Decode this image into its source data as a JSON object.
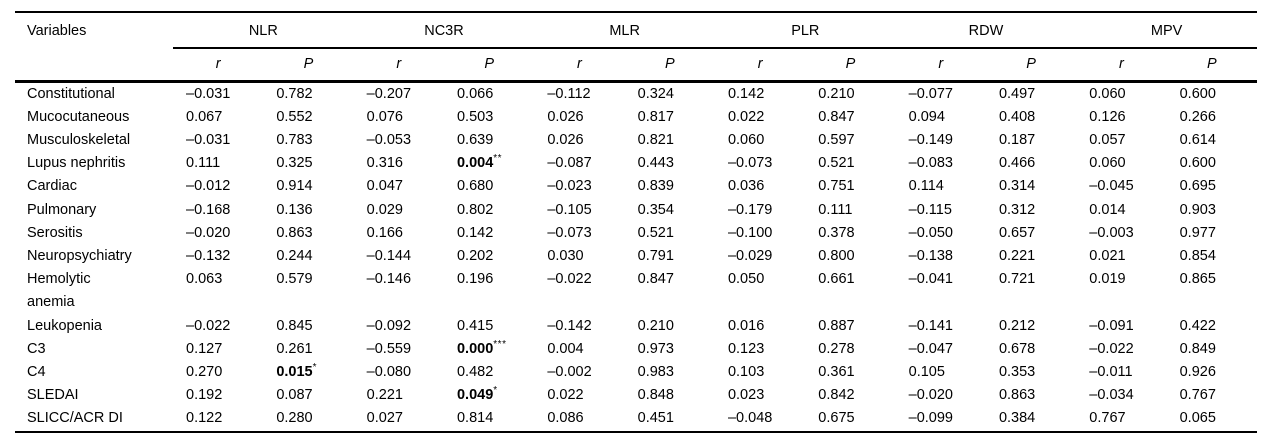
{
  "table": {
    "row_header_label": "Variables",
    "groups": [
      "NLR",
      "NC3R",
      "MLR",
      "PLR",
      "RDW",
      "MPV"
    ],
    "subheaders": [
      "r",
      "P"
    ],
    "rows": [
      {
        "label": "Constitutional",
        "cells": [
          "–0.031",
          "0.782",
          "–0.207",
          "0.066",
          "–0.112",
          "0.324",
          "0.142",
          "0.210",
          "–0.077",
          "0.497",
          "0.060",
          "0.600"
        ]
      },
      {
        "label": "Mucocutaneous",
        "cells": [
          "0.067",
          "0.552",
          "0.076",
          "0.503",
          "0.026",
          "0.817",
          "0.022",
          "0.847",
          "0.094",
          "0.408",
          "0.126",
          "0.266"
        ]
      },
      {
        "label": "Musculoskeletal",
        "cells": [
          "–0.031",
          "0.783",
          "–0.053",
          "0.639",
          "0.026",
          "0.821",
          "0.060",
          "0.597",
          "–0.149",
          "0.187",
          "0.057",
          "0.614"
        ]
      },
      {
        "label": "Lupus nephritis",
        "cells": [
          "0.111",
          "0.325",
          "0.316",
          {
            "v": "0.004",
            "bold": true,
            "sup": "**"
          },
          "–0.087",
          "0.443",
          "–0.073",
          "0.521",
          "–0.083",
          "0.466",
          "0.060",
          "0.600"
        ]
      },
      {
        "label": "Cardiac",
        "cells": [
          "–0.012",
          "0.914",
          "0.047",
          "0.680",
          "–0.023",
          "0.839",
          "0.036",
          "0.751",
          "0.114",
          "0.314",
          "–0.045",
          "0.695"
        ]
      },
      {
        "label": "Pulmonary",
        "cells": [
          "–0.168",
          "0.136",
          "0.029",
          "0.802",
          "–0.105",
          "0.354",
          "–0.179",
          "0.111",
          "–0.115",
          "0.312",
          "0.014",
          "0.903"
        ]
      },
      {
        "label": "Serositis",
        "cells": [
          "–0.020",
          "0.863",
          "0.166",
          "0.142",
          "–0.073",
          "0.521",
          "–0.100",
          "0.378",
          "–0.050",
          "0.657",
          "–0.003",
          "0.977"
        ]
      },
      {
        "label": "Neuropsychiatry",
        "cells": [
          "–0.132",
          "0.244",
          "–0.144",
          "0.202",
          "0.030",
          "0.791",
          "–0.029",
          "0.800",
          "–0.138",
          "0.221",
          "0.021",
          "0.854"
        ]
      },
      {
        "label": "Hemolytic\nanemia",
        "cells": [
          "0.063",
          "0.579",
          "–0.146",
          "0.196",
          "–0.022",
          "0.847",
          "0.050",
          "0.661",
          "–0.041",
          "0.721",
          "0.019",
          "0.865"
        ]
      },
      {
        "label": "Leukopenia",
        "cells": [
          "–0.022",
          "0.845",
          "–0.092",
          "0.415",
          "–0.142",
          "0.210",
          "0.016",
          "0.887",
          "–0.141",
          "0.212",
          "–0.091",
          "0.422"
        ]
      },
      {
        "label": "C3",
        "cells": [
          "0.127",
          "0.261",
          "–0.559",
          {
            "v": "0.000",
            "bold": true,
            "sup": "***"
          },
          "0.004",
          "0.973",
          "0.123",
          "0.278",
          "–0.047",
          "0.678",
          "–0.022",
          "0.849"
        ]
      },
      {
        "label": "C4",
        "cells": [
          "0.270",
          {
            "v": "0.015",
            "bold": true,
            "sup": "*"
          },
          "–0.080",
          "0.482",
          "–0.002",
          "0.983",
          "0.103",
          "0.361",
          "0.105",
          "0.353",
          "–0.011",
          "0.926"
        ]
      },
      {
        "label": "SLEDAI",
        "cells": [
          "0.192",
          "0.087",
          "0.221",
          {
            "v": "0.049",
            "bold": true,
            "sup": "*"
          },
          "0.022",
          "0.848",
          "0.023",
          "0.842",
          "–0.020",
          "0.863",
          "–0.034",
          "0.767"
        ]
      },
      {
        "label": "SLICC/ACR DI",
        "cells": [
          "0.122",
          "0.280",
          "0.027",
          "0.814",
          "0.086",
          "0.451",
          "–0.048",
          "0.675",
          "–0.099",
          "0.384",
          "0.767",
          "0.065"
        ]
      }
    ]
  }
}
